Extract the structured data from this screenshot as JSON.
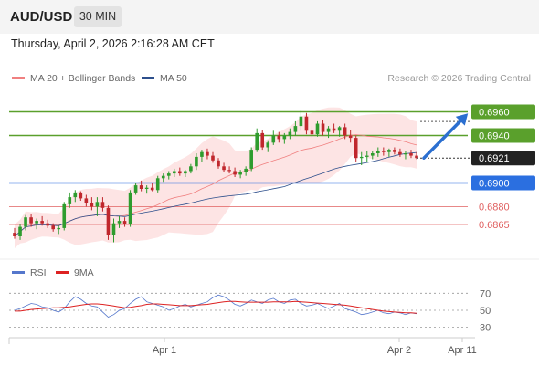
{
  "header": {
    "symbol": "AUD/USD",
    "interval": "30 MIN",
    "datetime": "Thursday, April 2, 2026 2:16:28 AM CET",
    "attribution": "Research © 2026 Trading Central"
  },
  "legend": {
    "ma20_label": "MA 20 + Bollinger Bands",
    "ma20_color": "#f08080",
    "ma50_label": "MA 50",
    "ma50_color": "#2d4f8c",
    "rsi_label": "RSI",
    "rsi_color": "#5577cc",
    "rsi_ma_label": "9MA",
    "rsi_ma_color": "#dd2222"
  },
  "chart_data": [
    {
      "type": "candlestick",
      "ylim": [
        0.6845,
        0.6975
      ],
      "current_price": "0.6921",
      "x_ticks": [
        "Apr 1",
        "Apr 2",
        "Apr 11"
      ],
      "levels": [
        {
          "value": 0.696,
          "label": "0.6960",
          "kind": "resistance",
          "color": "#5aa02c"
        },
        {
          "value": 0.694,
          "label": "0.6940",
          "kind": "resistance",
          "color": "#5aa02c"
        },
        {
          "value": 0.69,
          "label": "0.6900",
          "kind": "pivot",
          "color": "#2b6fe0"
        },
        {
          "value": 0.688,
          "label": "0.6880",
          "kind": "support",
          "color": "#e06060"
        },
        {
          "value": 0.6865,
          "label": "0.6865",
          "kind": "support",
          "color": "#e06060"
        }
      ],
      "forecast_arrow": {
        "from": 0.6921,
        "to": 0.696,
        "color": "#2b6fd0"
      },
      "bollinger_color": "#fde4e4",
      "candles": [
        [
          0.6858,
          0.6862,
          0.6853,
          0.6855
        ],
        [
          0.6855,
          0.6865,
          0.6852,
          0.6863
        ],
        [
          0.6863,
          0.6873,
          0.686,
          0.6871
        ],
        [
          0.6871,
          0.6874,
          0.6863,
          0.6866
        ],
        [
          0.6866,
          0.687,
          0.6861,
          0.6868
        ],
        [
          0.6868,
          0.6872,
          0.6864,
          0.6866
        ],
        [
          0.6866,
          0.6869,
          0.6862,
          0.6864
        ],
        [
          0.6864,
          0.6866,
          0.6859,
          0.6861
        ],
        [
          0.6861,
          0.6864,
          0.6857,
          0.6862
        ],
        [
          0.6862,
          0.6884,
          0.686,
          0.6882
        ],
        [
          0.6882,
          0.6892,
          0.6879,
          0.6888
        ],
        [
          0.6888,
          0.6894,
          0.6884,
          0.6892
        ],
        [
          0.6892,
          0.6893,
          0.6885,
          0.6887
        ],
        [
          0.6887,
          0.689,
          0.688,
          0.6883
        ],
        [
          0.6883,
          0.6888,
          0.6877,
          0.688
        ],
        [
          0.688,
          0.6888,
          0.6872,
          0.6884
        ],
        [
          0.6884,
          0.6888,
          0.6876,
          0.6879
        ],
        [
          0.6879,
          0.6881,
          0.6852,
          0.6856
        ],
        [
          0.6856,
          0.687,
          0.685,
          0.6866
        ],
        [
          0.6866,
          0.6872,
          0.6862,
          0.6868
        ],
        [
          0.6868,
          0.6871,
          0.6863,
          0.6865
        ],
        [
          0.6865,
          0.6894,
          0.6863,
          0.6892
        ],
        [
          0.6892,
          0.69,
          0.689,
          0.6898
        ],
        [
          0.6898,
          0.6902,
          0.6893,
          0.6895
        ],
        [
          0.6895,
          0.6898,
          0.6891,
          0.6896
        ],
        [
          0.6896,
          0.69,
          0.6893,
          0.6894
        ],
        [
          0.6894,
          0.6906,
          0.6892,
          0.6904
        ],
        [
          0.6904,
          0.6908,
          0.6901,
          0.6906
        ],
        [
          0.6906,
          0.691,
          0.6903,
          0.6908
        ],
        [
          0.6908,
          0.6912,
          0.6905,
          0.691
        ],
        [
          0.691,
          0.6913,
          0.6906,
          0.6908
        ],
        [
          0.6908,
          0.6911,
          0.6905,
          0.691
        ],
        [
          0.691,
          0.6916,
          0.6908,
          0.6914
        ],
        [
          0.6914,
          0.6925,
          0.6911,
          0.6922
        ],
        [
          0.6922,
          0.6928,
          0.6918,
          0.6926
        ],
        [
          0.6926,
          0.6929,
          0.692,
          0.6923
        ],
        [
          0.6923,
          0.6926,
          0.6917,
          0.6919
        ],
        [
          0.6919,
          0.6921,
          0.6912,
          0.6914
        ],
        [
          0.6914,
          0.6917,
          0.6909,
          0.6911
        ],
        [
          0.6911,
          0.6914,
          0.6908,
          0.691
        ],
        [
          0.691,
          0.6913,
          0.6905,
          0.6907
        ],
        [
          0.6907,
          0.6911,
          0.6904,
          0.6909
        ],
        [
          0.6909,
          0.6914,
          0.6906,
          0.6912
        ],
        [
          0.6912,
          0.693,
          0.691,
          0.6928
        ],
        [
          0.6928,
          0.6946,
          0.6926,
          0.6942
        ],
        [
          0.6942,
          0.6945,
          0.6928,
          0.693
        ],
        [
          0.693,
          0.6936,
          0.6926,
          0.6934
        ],
        [
          0.6934,
          0.6944,
          0.6932,
          0.694
        ],
        [
          0.694,
          0.6943,
          0.6934,
          0.6937
        ],
        [
          0.6937,
          0.6942,
          0.6933,
          0.694
        ],
        [
          0.694,
          0.6946,
          0.6937,
          0.6943
        ],
        [
          0.6943,
          0.6952,
          0.694,
          0.6948
        ],
        [
          0.6948,
          0.6961,
          0.6944,
          0.6956
        ],
        [
          0.6956,
          0.6959,
          0.6941,
          0.6944
        ],
        [
          0.6944,
          0.6948,
          0.6938,
          0.6941
        ],
        [
          0.6941,
          0.6952,
          0.6939,
          0.695
        ],
        [
          0.695,
          0.6953,
          0.694,
          0.6943
        ],
        [
          0.6943,
          0.6948,
          0.6938,
          0.6946
        ],
        [
          0.6946,
          0.695,
          0.6942,
          0.6944
        ],
        [
          0.6944,
          0.6948,
          0.6939,
          0.6947
        ],
        [
          0.6947,
          0.695,
          0.6937,
          0.694
        ],
        [
          0.694,
          0.6945,
          0.6934,
          0.6938
        ],
        [
          0.6938,
          0.694,
          0.6918,
          0.6921
        ],
        [
          0.6921,
          0.6926,
          0.6915,
          0.6922
        ],
        [
          0.6922,
          0.6927,
          0.6918,
          0.6923
        ],
        [
          0.6923,
          0.6927,
          0.692,
          0.6925
        ],
        [
          0.6925,
          0.693,
          0.6922,
          0.6927
        ],
        [
          0.6927,
          0.693,
          0.6923,
          0.6926
        ],
        [
          0.6926,
          0.6929,
          0.6922,
          0.6928
        ],
        [
          0.6928,
          0.693,
          0.6924,
          0.6926
        ],
        [
          0.6926,
          0.6929,
          0.6922,
          0.6924
        ],
        [
          0.6924,
          0.6927,
          0.692,
          0.6925
        ],
        [
          0.6925,
          0.6928,
          0.6921,
          0.6923
        ],
        [
          0.6923,
          0.6926,
          0.692,
          0.6921
        ]
      ]
    },
    {
      "type": "line",
      "title": "RSI",
      "ylim": [
        20,
        80
      ],
      "y_ticks": [
        70,
        50,
        30
      ],
      "series": [
        {
          "name": "RSI",
          "values": [
            50,
            52,
            55,
            58,
            57,
            54,
            53,
            50,
            48,
            52,
            60,
            66,
            63,
            58,
            55,
            54,
            48,
            42,
            45,
            50,
            52,
            58,
            63,
            66,
            60,
            58,
            56,
            54,
            50,
            52,
            55,
            57,
            54,
            56,
            58,
            60,
            65,
            68,
            66,
            62,
            57,
            55,
            58,
            62,
            60,
            58,
            62,
            64,
            60,
            58,
            62,
            63,
            58,
            55,
            56,
            58,
            55,
            52,
            55,
            58,
            52,
            50,
            48,
            45,
            46,
            48,
            50,
            47,
            46,
            48,
            47,
            45,
            47,
            46
          ]
        },
        {
          "name": "9MA",
          "values": [
            49,
            49,
            50,
            51,
            51.5,
            52,
            52.5,
            53,
            53,
            53.5,
            54,
            55,
            56,
            57,
            57.5,
            57.5,
            57,
            56,
            55,
            54,
            53,
            53.5,
            54.5,
            55.5,
            57,
            57.5,
            57.5,
            57,
            56.5,
            56,
            55.5,
            55.5,
            55.5,
            56,
            56.5,
            57,
            58,
            59,
            60,
            60.5,
            60.5,
            60,
            59.5,
            59.5,
            59.5,
            59.5,
            59.5,
            60,
            60,
            60,
            60,
            60.5,
            60,
            59.5,
            59,
            58.5,
            58,
            57.5,
            57,
            56.5,
            56,
            55,
            54,
            53,
            52,
            51,
            50,
            49,
            48.5,
            48,
            47.5,
            47,
            47,
            46.5
          ]
        }
      ]
    }
  ]
}
